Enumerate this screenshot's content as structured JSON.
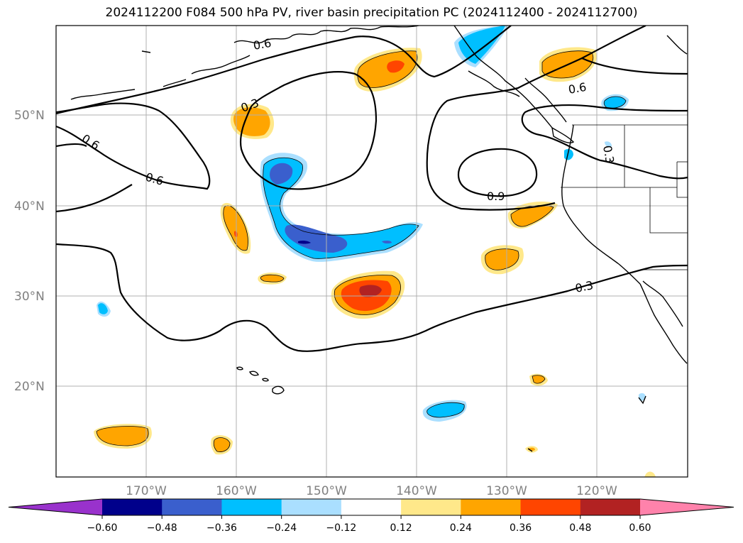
{
  "title": "2024112200 F084 500 hPa PV, river basin precipitation PC (2024112400 - 2024112700)",
  "lat_labels": [
    "50°N",
    "40°N",
    "30°N",
    "20°N"
  ],
  "lon_labels": [
    "170°W",
    "160°W",
    "150°W",
    "140°W",
    "130°W",
    "120°W"
  ],
  "contour_labels": [
    "0.6",
    "0.3",
    "0.6",
    "0.6",
    "0.6",
    "0.9",
    "0.3",
    "0.3"
  ],
  "colorbar": {
    "ticks": [
      "−0.60",
      "−0.48",
      "−0.36",
      "−0.24",
      "−0.12",
      "0.12",
      "0.24",
      "0.36",
      "0.48",
      "0.60"
    ],
    "colors": [
      "#9932cc",
      "#00008b",
      "#3a5fcd",
      "#00bfff",
      "#aadfff",
      "#ffffff",
      "#ffe88a",
      "#ffa500",
      "#ff4500",
      "#b22222",
      "#ff82ab"
    ]
  }
}
